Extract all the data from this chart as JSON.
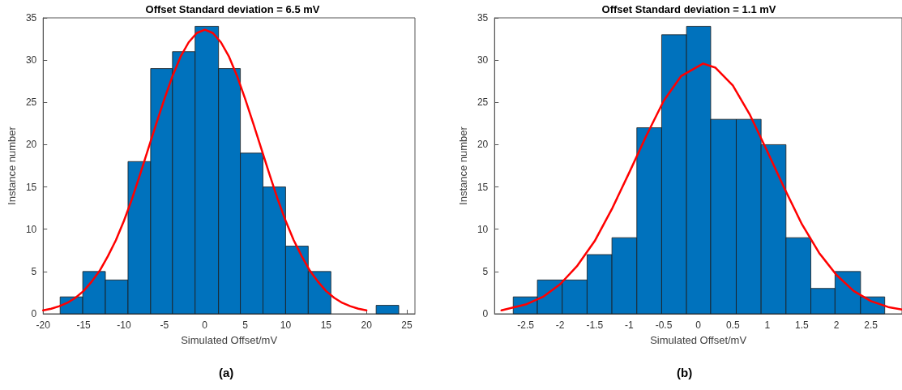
{
  "chart_data": [
    {
      "type": "histogram",
      "title": "Offset Standard deviation = 6.5 mV",
      "xlabel": "Simulated Offset/mV",
      "ylabel": "Instance number",
      "annotations": [
        "(a)"
      ],
      "color": "#0072bd",
      "bins": [
        -17.9,
        -15.1,
        -12.3,
        -9.5,
        -6.7,
        -4.0,
        -1.2,
        1.7,
        4.4,
        7.2,
        10.0,
        12.8,
        15.6,
        21.2,
        24.0
      ],
      "values": [
        2,
        5,
        4,
        18,
        29,
        31,
        34,
        29,
        19,
        15,
        8,
        5,
        0,
        1
      ],
      "series": [
        {
          "type": "line",
          "color": "#ff0000",
          "x": [
            -20,
            -19,
            -18,
            -17,
            -16,
            -15,
            -14,
            -13,
            -12,
            -11,
            -10,
            -9,
            -8,
            -7,
            -6,
            -5,
            -4,
            -3,
            -2,
            -1,
            0,
            1,
            2,
            3,
            4,
            5,
            6,
            7,
            8,
            9,
            10,
            11,
            12,
            13,
            14,
            15,
            16,
            17,
            18,
            19,
            20
          ],
          "values": [
            0.4,
            0.6,
            0.9,
            1.3,
            1.9,
            2.7,
            3.8,
            5.1,
            6.8,
            8.7,
            11.0,
            13.6,
            16.5,
            19.5,
            22.5,
            25.4,
            28.1,
            30.4,
            32.1,
            33.2,
            33.6,
            33.2,
            32.1,
            30.4,
            28.1,
            25.4,
            22.5,
            19.5,
            16.5,
            13.6,
            11.0,
            8.7,
            6.8,
            5.1,
            3.8,
            2.7,
            1.9,
            1.3,
            0.9,
            0.6,
            0.4
          ]
        }
      ],
      "xlim": [
        -20,
        26
      ],
      "xticks": [
        -20,
        -15,
        -10,
        -5,
        0,
        5,
        10,
        15,
        20,
        25
      ],
      "ylim": [
        0,
        35
      ],
      "yticks": [
        0,
        5,
        10,
        15,
        20,
        25,
        30,
        35
      ],
      "grid": false,
      "line_style": "solid",
      "marker": "none"
    },
    {
      "type": "histogram",
      "title": "Offset Standard deviation = 1.1 mV",
      "xlabel": "Simulated Offset/mV",
      "ylabel": "Instance number",
      "annotations": [
        "(b)"
      ],
      "color": "#0072bd",
      "bins": [
        -2.68,
        -2.33,
        -1.97,
        -1.61,
        -1.25,
        -0.89,
        -0.53,
        -0.17,
        0.18,
        0.55,
        0.91,
        1.27,
        1.63,
        1.98,
        2.35,
        2.7
      ],
      "values": [
        2,
        4,
        4,
        7,
        9,
        22,
        33,
        34,
        23,
        23,
        20,
        9,
        3,
        5,
        2
      ],
      "series": [
        {
          "type": "line",
          "color": "#ff0000",
          "x": [
            -2.85,
            -2.5,
            -2.25,
            -2,
            -1.75,
            -1.5,
            -1.25,
            -1,
            -0.75,
            -0.5,
            -0.25,
            0.07,
            0.25,
            0.5,
            0.75,
            1,
            1.25,
            1.5,
            1.75,
            2,
            2.25,
            2.5,
            2.75,
            2.95
          ],
          "values": [
            0.4,
            1.1,
            2.0,
            3.5,
            5.7,
            8.6,
            12.4,
            16.7,
            21.1,
            25.2,
            28.1,
            29.6,
            29.1,
            27.0,
            23.5,
            19.2,
            14.8,
            10.6,
            7.2,
            4.6,
            2.7,
            1.5,
            0.8,
            0.5
          ]
        }
      ],
      "xlim": [
        -2.95,
        2.95
      ],
      "xticks": [
        -2.5,
        -2,
        -1.5,
        -1,
        -0.5,
        0,
        0.5,
        1,
        1.5,
        2,
        2.5
      ],
      "ylim": [
        0,
        35
      ],
      "yticks": [
        0,
        5,
        10,
        15,
        20,
        25,
        30,
        35
      ],
      "grid": false,
      "line_style": "solid",
      "marker": "none"
    }
  ]
}
